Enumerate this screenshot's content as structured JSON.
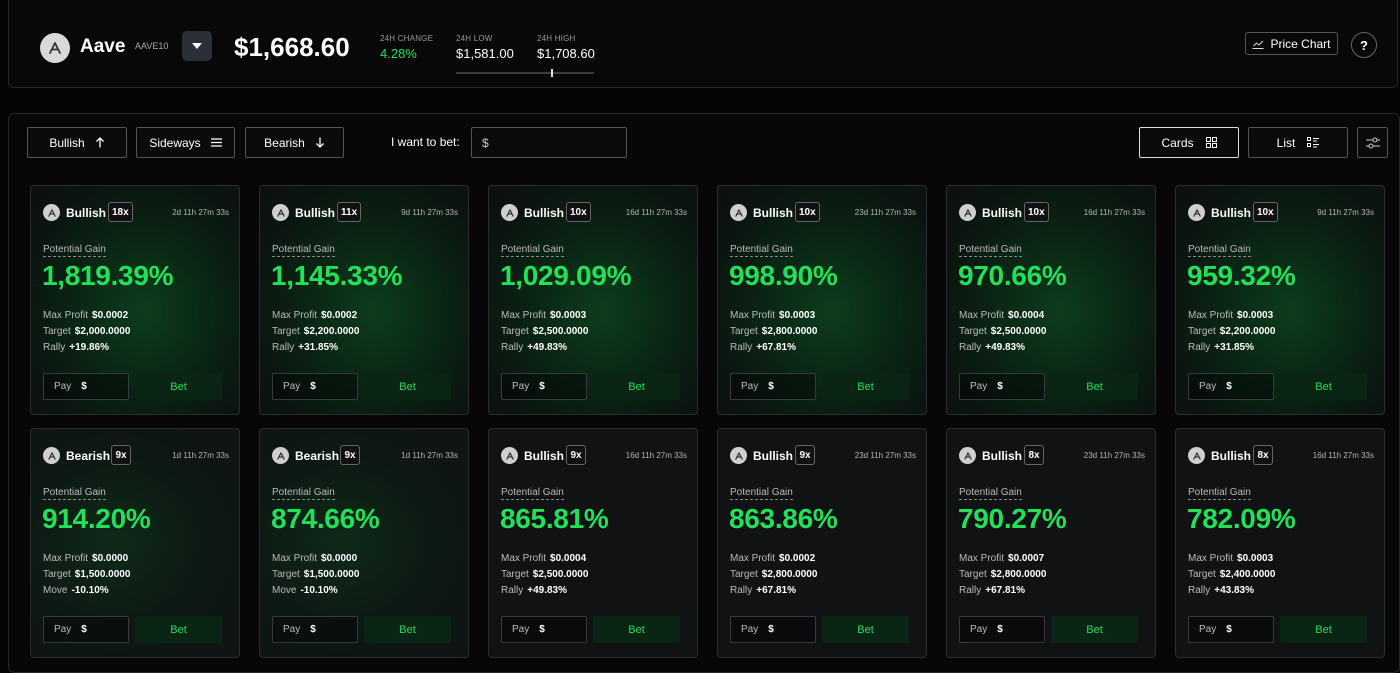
{
  "header": {
    "asset_name": "Aave",
    "asset_ticker": "AAVE10",
    "price": "$1,668.60",
    "change_label": "24H CHANGE",
    "change_value": "4.28%",
    "low_label": "24H LOW",
    "low_value": "$1,581.00",
    "high_label": "24H HIGH",
    "high_value": "$1,708.60",
    "price_chart_label": "Price Chart",
    "help_label": "?",
    "colors": {
      "positive": "#22e05a"
    }
  },
  "toolbar": {
    "bullish_label": "Bullish",
    "sideways_label": "Sideways",
    "bearish_label": "Bearish",
    "bet_label": "I want to bet:",
    "bet_placeholder": "$",
    "cards_label": "Cards",
    "list_label": "List"
  },
  "cards": [
    {
      "direction": "Bullish",
      "leverage": "18x",
      "timer": "2d 11h 27m 33s",
      "gain_label": "Potential Gain",
      "gain": "1,819.39%",
      "max_profit_label": "Max Profit",
      "max_profit": "$0.0002",
      "target_label": "Target",
      "target": "$2,000.0000",
      "move_label": "Rally",
      "move": "+19.86%",
      "pay_label": "Pay",
      "pay_currency": "$",
      "bet_label": "Bet"
    },
    {
      "direction": "Bullish",
      "leverage": "11x",
      "timer": "9d 11h 27m 33s",
      "gain_label": "Potential Gain",
      "gain": "1,145.33%",
      "max_profit_label": "Max Profit",
      "max_profit": "$0.0002",
      "target_label": "Target",
      "target": "$2,200.0000",
      "move_label": "Rally",
      "move": "+31.85%",
      "pay_label": "Pay",
      "pay_currency": "$",
      "bet_label": "Bet"
    },
    {
      "direction": "Bullish",
      "leverage": "10x",
      "timer": "16d 11h 27m 33s",
      "gain_label": "Potential Gain",
      "gain": "1,029.09%",
      "max_profit_label": "Max Profit",
      "max_profit": "$0.0003",
      "target_label": "Target",
      "target": "$2,500.0000",
      "move_label": "Rally",
      "move": "+49.83%",
      "pay_label": "Pay",
      "pay_currency": "$",
      "bet_label": "Bet"
    },
    {
      "direction": "Bullish",
      "leverage": "10x",
      "timer": "23d 11h 27m 33s",
      "gain_label": "Potential Gain",
      "gain": "998.90%",
      "max_profit_label": "Max Profit",
      "max_profit": "$0.0003",
      "target_label": "Target",
      "target": "$2,800.0000",
      "move_label": "Rally",
      "move": "+67.81%",
      "pay_label": "Pay",
      "pay_currency": "$",
      "bet_label": "Bet"
    },
    {
      "direction": "Bullish",
      "leverage": "10x",
      "timer": "16d 11h 27m 33s",
      "gain_label": "Potential Gain",
      "gain": "970.66%",
      "max_profit_label": "Max Profit",
      "max_profit": "$0.0004",
      "target_label": "Target",
      "target": "$2,500.0000",
      "move_label": "Rally",
      "move": "+49.83%",
      "pay_label": "Pay",
      "pay_currency": "$",
      "bet_label": "Bet"
    },
    {
      "direction": "Bullish",
      "leverage": "10x",
      "timer": "9d 11h 27m 33s",
      "gain_label": "Potential Gain",
      "gain": "959.32%",
      "max_profit_label": "Max Profit",
      "max_profit": "$0.0003",
      "target_label": "Target",
      "target": "$2,200.0000",
      "move_label": "Rally",
      "move": "+31.85%",
      "pay_label": "Pay",
      "pay_currency": "$",
      "bet_label": "Bet"
    },
    {
      "direction": "Bearish",
      "leverage": "9x",
      "timer": "1d 11h 27m 33s",
      "gain_label": "Potential Gain",
      "gain": "914.20%",
      "max_profit_label": "Max Profit",
      "max_profit": "$0.0000",
      "target_label": "Target",
      "target": "$1,500.0000",
      "move_label": "Move",
      "move": "-10.10%",
      "pay_label": "Pay",
      "pay_currency": "$",
      "bet_label": "Bet"
    },
    {
      "direction": "Bearish",
      "leverage": "9x",
      "timer": "1d 11h 27m 33s",
      "gain_label": "Potential Gain",
      "gain": "874.66%",
      "max_profit_label": "Max Profit",
      "max_profit": "$0.0000",
      "target_label": "Target",
      "target": "$1,500.0000",
      "move_label": "Move",
      "move": "-10.10%",
      "pay_label": "Pay",
      "pay_currency": "$",
      "bet_label": "Bet"
    },
    {
      "direction": "Bullish",
      "leverage": "9x",
      "timer": "16d 11h 27m 33s",
      "gain_label": "Potential Gain",
      "gain": "865.81%",
      "max_profit_label": "Max Profit",
      "max_profit": "$0.0004",
      "target_label": "Target",
      "target": "$2,500.0000",
      "move_label": "Rally",
      "move": "+49.83%",
      "pay_label": "Pay",
      "pay_currency": "$",
      "bet_label": "Bet"
    },
    {
      "direction": "Bullish",
      "leverage": "9x",
      "timer": "23d 11h 27m 33s",
      "gain_label": "Potential Gain",
      "gain": "863.86%",
      "max_profit_label": "Max Profit",
      "max_profit": "$0.0002",
      "target_label": "Target",
      "target": "$2,800.0000",
      "move_label": "Rally",
      "move": "+67.81%",
      "pay_label": "Pay",
      "pay_currency": "$",
      "bet_label": "Bet"
    },
    {
      "direction": "Bullish",
      "leverage": "8x",
      "timer": "23d 11h 27m 33s",
      "gain_label": "Potential Gain",
      "gain": "790.27%",
      "max_profit_label": "Max Profit",
      "max_profit": "$0.0007",
      "target_label": "Target",
      "target": "$2,800.0000",
      "move_label": "Rally",
      "move": "+67.81%",
      "pay_label": "Pay",
      "pay_currency": "$",
      "bet_label": "Bet"
    },
    {
      "direction": "Bullish",
      "leverage": "8x",
      "timer": "16d 11h 27m 33s",
      "gain_label": "Potential Gain",
      "gain": "782.09%",
      "max_profit_label": "Max Profit",
      "max_profit": "$0.0003",
      "target_label": "Target",
      "target": "$2,400.0000",
      "move_label": "Rally",
      "move": "+43.83%",
      "pay_label": "Pay",
      "pay_currency": "$",
      "bet_label": "Bet"
    }
  ]
}
